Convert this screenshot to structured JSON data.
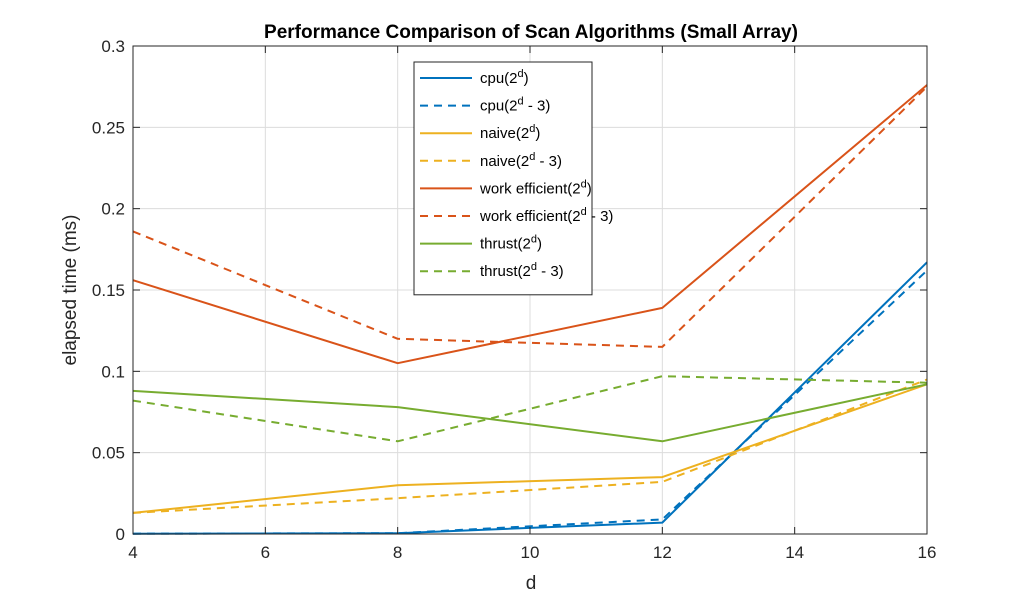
{
  "chart_data": {
    "type": "line",
    "title": "Performance Comparison of Scan Algorithms (Small Array)",
    "xlabel": "d",
    "ylabel": "elapsed time (ms)",
    "xlim": [
      4,
      16
    ],
    "ylim": [
      0,
      0.3
    ],
    "xticks": [
      4,
      6,
      8,
      10,
      12,
      14,
      16
    ],
    "yticks": [
      0,
      0.05,
      0.1,
      0.15,
      0.2,
      0.25,
      0.3
    ],
    "ytick_labels": [
      "0",
      "0.05",
      "0.1",
      "0.15",
      "0.2",
      "0.25",
      "0.3"
    ],
    "grid": true,
    "legend_position": "top-center",
    "x": [
      4,
      8,
      12,
      16
    ],
    "series": [
      {
        "name": "cpu(2^d)",
        "legend_base": "cpu(2",
        "legend_sup": "d",
        "legend_tail": ")",
        "color": "#0072BD",
        "dashed": false,
        "values": [
          0.0002,
          0.0005,
          0.007,
          0.167
        ]
      },
      {
        "name": "cpu(2^d - 3)",
        "legend_base": "cpu(2",
        "legend_sup": "d",
        "legend_tail": " - 3)",
        "color": "#0072BD",
        "dashed": true,
        "values": [
          0.0002,
          0.0005,
          0.009,
          0.162
        ]
      },
      {
        "name": "naive(2^d)",
        "legend_base": "naive(2",
        "legend_sup": "d",
        "legend_tail": ")",
        "color": "#EDB120",
        "dashed": false,
        "values": [
          0.013,
          0.03,
          0.035,
          0.092
        ]
      },
      {
        "name": "naive(2^d - 3)",
        "legend_base": "naive(2",
        "legend_sup": "d",
        "legend_tail": " - 3)",
        "color": "#EDB120",
        "dashed": true,
        "values": [
          0.013,
          0.022,
          0.032,
          0.095
        ]
      },
      {
        "name": "work efficient(2^d)",
        "legend_base": "work efficient(2",
        "legend_sup": "d",
        "legend_tail": ")",
        "color": "#D95319",
        "dashed": false,
        "values": [
          0.156,
          0.105,
          0.139,
          0.276
        ]
      },
      {
        "name": "work efficient(2^d - 3)",
        "legend_base": "work efficient(2",
        "legend_sup": "d",
        "legend_tail": " - 3)",
        "color": "#D95319",
        "dashed": true,
        "values": [
          0.186,
          0.12,
          0.115,
          0.275
        ]
      },
      {
        "name": "thrust(2^d)",
        "legend_base": "thrust(2",
        "legend_sup": "d",
        "legend_tail": ")",
        "color": "#77AC30",
        "dashed": false,
        "values": [
          0.088,
          0.078,
          0.057,
          0.092
        ]
      },
      {
        "name": "thrust(2^d - 3)",
        "legend_base": "thrust(2",
        "legend_sup": "d",
        "legend_tail": " - 3)",
        "color": "#77AC30",
        "dashed": true,
        "values": [
          0.082,
          0.057,
          0.097,
          0.093
        ]
      }
    ]
  }
}
